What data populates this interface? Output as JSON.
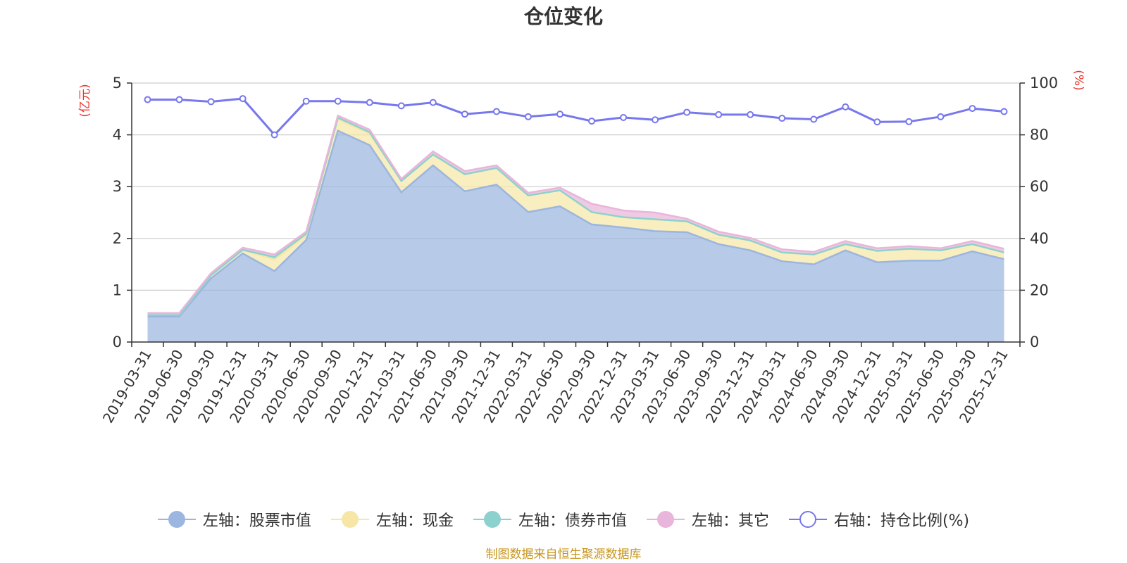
{
  "chart_data": {
    "type": "area",
    "title": "仓位变化",
    "left_axis_unit": "(亿元)",
    "right_axis_unit": "(%)",
    "left_ylim": [
      0,
      5
    ],
    "left_yticks": [
      "0",
      "1",
      "2",
      "3",
      "4",
      "5"
    ],
    "right_ylim": [
      0,
      100
    ],
    "right_yticks": [
      "0",
      "20",
      "40",
      "60",
      "80",
      "100"
    ],
    "grid": true,
    "legend_position": "bottom",
    "categories": [
      "2019-03-31",
      "2019-06-30",
      "2019-09-30",
      "2019-12-31",
      "2020-03-31",
      "2020-06-30",
      "2020-09-30",
      "2020-12-31",
      "2021-03-31",
      "2021-06-30",
      "2021-09-30",
      "2021-12-31",
      "2022-03-31",
      "2022-06-30",
      "2022-09-30",
      "2022-12-31",
      "2023-03-31",
      "2023-06-30",
      "2023-09-30",
      "2023-12-31",
      "2024-03-31",
      "2024-06-30",
      "2024-09-30",
      "2024-12-31",
      "2025-03-31",
      "2025-06-30",
      "2025-09-30",
      "2025-12-31"
    ],
    "series": [
      {
        "name": "左轴：股票市值",
        "axis": "left",
        "stacked": true,
        "color": "#9bb6df",
        "values": [
          0.49,
          0.49,
          1.23,
          1.71,
          1.37,
          1.97,
          4.08,
          3.8,
          2.89,
          3.41,
          2.91,
          3.04,
          2.51,
          2.62,
          2.27,
          2.21,
          2.14,
          2.12,
          1.89,
          1.77,
          1.56,
          1.5,
          1.77,
          1.54,
          1.57,
          1.57,
          1.75,
          1.6
        ]
      },
      {
        "name": "左轴：现金",
        "axis": "left",
        "stacked": true,
        "color": "#f6e7a6",
        "values": [
          0.03,
          0.03,
          0.06,
          0.07,
          0.22,
          0.09,
          0.22,
          0.22,
          0.22,
          0.21,
          0.33,
          0.32,
          0.32,
          0.31,
          0.24,
          0.2,
          0.23,
          0.21,
          0.18,
          0.19,
          0.17,
          0.19,
          0.12,
          0.22,
          0.23,
          0.2,
          0.14,
          0.13
        ]
      },
      {
        "name": "左轴：债券市值",
        "axis": "left",
        "stacked": true,
        "color": "#8dd1cf",
        "values": [
          0.0,
          0.0,
          0.0,
          0.0,
          0.05,
          0.03,
          0.03,
          0.03,
          0.0,
          0.0,
          0.0,
          0.0,
          0.0,
          0.0,
          0.0,
          0.0,
          0.0,
          0.0,
          0.0,
          0.0,
          0.0,
          0.0,
          0.0,
          0.0,
          0.0,
          0.0,
          0.0,
          0.0
        ]
      },
      {
        "name": "左轴：其它",
        "axis": "left",
        "stacked": true,
        "color": "#e9b5da",
        "values": [
          0.04,
          0.04,
          0.04,
          0.04,
          0.05,
          0.04,
          0.04,
          0.05,
          0.04,
          0.06,
          0.06,
          0.05,
          0.05,
          0.05,
          0.16,
          0.13,
          0.13,
          0.05,
          0.06,
          0.05,
          0.06,
          0.05,
          0.06,
          0.05,
          0.05,
          0.04,
          0.06,
          0.07
        ]
      },
      {
        "name": "右轴：持仓比例(%)",
        "axis": "right",
        "stacked": false,
        "color": "#7777ee",
        "values": [
          93.6,
          93.6,
          92.8,
          94.0,
          80.0,
          93.0,
          93.0,
          92.5,
          91.2,
          92.5,
          88.0,
          89.0,
          87.0,
          88.0,
          85.3,
          86.7,
          85.8,
          88.7,
          87.8,
          87.8,
          86.4,
          86.0,
          90.8,
          85.0,
          85.1,
          87.0,
          90.2,
          89.0
        ]
      }
    ],
    "source_note": "制图数据来自恒生聚源数据库"
  }
}
